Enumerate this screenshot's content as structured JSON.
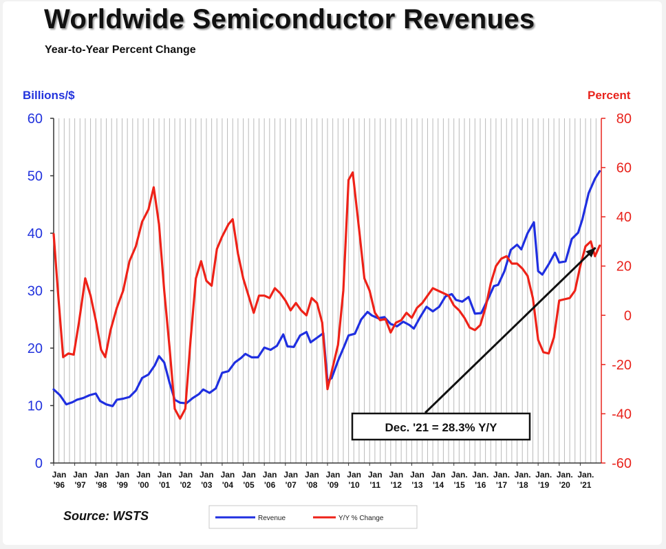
{
  "header": {
    "title": "Worldwide Semiconductor Revenues",
    "subtitle": "Year-to-Year Percent Change"
  },
  "footer": {
    "source": "Source: WSTS"
  },
  "chart_data": {
    "type": "line",
    "title": "Worldwide Semiconductor Revenues",
    "subtitle": "Year-to-Year Percent Change",
    "y_left_label": "Billions/$",
    "y_right_label": "Percent",
    "y_left_range": [
      0,
      60
    ],
    "y_left_ticks": [
      "0",
      "10",
      "20",
      "30",
      "40",
      "50",
      "60"
    ],
    "y_right_range": [
      -60,
      80
    ],
    "y_right_ticks": [
      "-60",
      "-40",
      "-20",
      "0",
      "20",
      "40",
      "60",
      "80"
    ],
    "x_range": [
      1996.0,
      2022.0
    ],
    "x_tick_labels": [
      [
        "Jan",
        "'96"
      ],
      [
        "Jan",
        "'97"
      ],
      [
        "Jan",
        "'98"
      ],
      [
        "Jan",
        "'99"
      ],
      [
        "Jan",
        "'00"
      ],
      [
        "Jan",
        "'01"
      ],
      [
        "Jan",
        "'02"
      ],
      [
        "Jan",
        "'03"
      ],
      [
        "Jan",
        "'04"
      ],
      [
        "Jan",
        "'05"
      ],
      [
        "Jan",
        "'06"
      ],
      [
        "Jan",
        "'07"
      ],
      [
        "Jan",
        "'08"
      ],
      [
        "Jan",
        "'09"
      ],
      [
        "Jan",
        "'10"
      ],
      [
        "Jan",
        "'11"
      ],
      [
        "Jan",
        "'12"
      ],
      [
        "Jan",
        "'13"
      ],
      [
        "Jan",
        "'14"
      ],
      [
        "Jan.",
        "'15"
      ],
      [
        "Jan.",
        "'16"
      ],
      [
        "Jan.",
        "'17"
      ],
      [
        "Jan.",
        "'18"
      ],
      [
        "Jan.",
        "'19"
      ],
      [
        "Jan.",
        "'20"
      ],
      [
        "Jan.",
        "'21"
      ]
    ],
    "grid": "vertical lines",
    "legend_position": "bottom-center",
    "annotation": "Dec. '21 = 28.3% Y/Y",
    "annotation_target": {
      "x": 2021.92,
      "y_percent": 28.3
    },
    "series": [
      {
        "name": "Revenue",
        "axis": "left",
        "color": "#1f2fe0",
        "points": [
          [
            1996.0,
            12.8
          ],
          [
            1996.3,
            11.8
          ],
          [
            1996.6,
            10.2
          ],
          [
            1996.9,
            10.6
          ],
          [
            1997.1,
            11.0
          ],
          [
            1997.4,
            11.3
          ],
          [
            1997.7,
            11.8
          ],
          [
            1998.0,
            12.1
          ],
          [
            1998.2,
            10.8
          ],
          [
            1998.5,
            10.2
          ],
          [
            1998.8,
            9.9
          ],
          [
            1999.0,
            11.0
          ],
          [
            1999.3,
            11.2
          ],
          [
            1999.6,
            11.5
          ],
          [
            1999.9,
            12.6
          ],
          [
            2000.2,
            14.8
          ],
          [
            2000.5,
            15.4
          ],
          [
            2000.8,
            17.0
          ],
          [
            2001.0,
            18.6
          ],
          [
            2001.25,
            17.5
          ],
          [
            2001.5,
            14.0
          ],
          [
            2001.75,
            11.0
          ],
          [
            2002.0,
            10.5
          ],
          [
            2002.3,
            10.4
          ],
          [
            2002.6,
            11.3
          ],
          [
            2002.9,
            12.0
          ],
          [
            2003.1,
            12.8
          ],
          [
            2003.4,
            12.2
          ],
          [
            2003.7,
            13.0
          ],
          [
            2004.0,
            15.7
          ],
          [
            2004.3,
            16.0
          ],
          [
            2004.6,
            17.5
          ],
          [
            2004.9,
            18.3
          ],
          [
            2005.1,
            19.0
          ],
          [
            2005.4,
            18.4
          ],
          [
            2005.7,
            18.4
          ],
          [
            2006.0,
            20.1
          ],
          [
            2006.3,
            19.7
          ],
          [
            2006.6,
            20.4
          ],
          [
            2006.9,
            22.4
          ],
          [
            2007.1,
            20.3
          ],
          [
            2007.4,
            20.2
          ],
          [
            2007.7,
            22.2
          ],
          [
            2008.0,
            22.8
          ],
          [
            2008.2,
            21.0
          ],
          [
            2008.5,
            21.8
          ],
          [
            2008.8,
            22.6
          ],
          [
            2009.0,
            14.2
          ],
          [
            2009.2,
            14.8
          ],
          [
            2009.5,
            17.8
          ],
          [
            2009.8,
            20.4
          ],
          [
            2010.0,
            22.2
          ],
          [
            2010.3,
            22.5
          ],
          [
            2010.6,
            25.0
          ],
          [
            2010.9,
            26.3
          ],
          [
            2011.1,
            25.7
          ],
          [
            2011.4,
            25.2
          ],
          [
            2011.7,
            25.4
          ],
          [
            2012.0,
            24.2
          ],
          [
            2012.3,
            23.8
          ],
          [
            2012.6,
            24.6
          ],
          [
            2012.9,
            24.0
          ],
          [
            2013.1,
            23.4
          ],
          [
            2013.4,
            25.4
          ],
          [
            2013.7,
            27.2
          ],
          [
            2014.0,
            26.4
          ],
          [
            2014.3,
            27.2
          ],
          [
            2014.6,
            29.0
          ],
          [
            2014.9,
            29.4
          ],
          [
            2015.1,
            28.4
          ],
          [
            2015.4,
            28.1
          ],
          [
            2015.7,
            28.9
          ],
          [
            2016.0,
            26.0
          ],
          [
            2016.3,
            26.1
          ],
          [
            2016.6,
            28.4
          ],
          [
            2016.9,
            30.8
          ],
          [
            2017.1,
            31.0
          ],
          [
            2017.4,
            33.4
          ],
          [
            2017.7,
            37.1
          ],
          [
            2018.0,
            38.0
          ],
          [
            2018.2,
            37.2
          ],
          [
            2018.5,
            40.0
          ],
          [
            2018.8,
            41.9
          ],
          [
            2019.0,
            33.4
          ],
          [
            2019.2,
            32.8
          ],
          [
            2019.5,
            34.6
          ],
          [
            2019.8,
            36.6
          ],
          [
            2020.0,
            34.9
          ],
          [
            2020.3,
            35.1
          ],
          [
            2020.6,
            39.0
          ],
          [
            2020.9,
            40.1
          ],
          [
            2021.1,
            42.4
          ],
          [
            2021.4,
            47.0
          ],
          [
            2021.7,
            49.5
          ],
          [
            2021.92,
            50.8
          ]
        ]
      },
      {
        "name": "Y/Y % Change",
        "axis": "right",
        "color": "#ee2218",
        "points": [
          [
            1996.0,
            33.0
          ],
          [
            1996.2,
            10.0
          ],
          [
            1996.45,
            -17.0
          ],
          [
            1996.7,
            -15.5
          ],
          [
            1996.95,
            -16.0
          ],
          [
            1997.2,
            -3.0
          ],
          [
            1997.5,
            15.0
          ],
          [
            1997.75,
            8.0
          ],
          [
            1998.0,
            -2.0
          ],
          [
            1998.25,
            -14.0
          ],
          [
            1998.45,
            -17.0
          ],
          [
            1998.7,
            -6.0
          ],
          [
            1999.0,
            3.0
          ],
          [
            1999.3,
            10.0
          ],
          [
            1999.6,
            22.0
          ],
          [
            1999.9,
            28.0
          ],
          [
            2000.2,
            38.0
          ],
          [
            2000.5,
            43.0
          ],
          [
            2000.75,
            52.0
          ],
          [
            2001.0,
            37.0
          ],
          [
            2001.25,
            10.0
          ],
          [
            2001.5,
            -13.0
          ],
          [
            2001.75,
            -38.0
          ],
          [
            2002.0,
            -42.0
          ],
          [
            2002.25,
            -38.0
          ],
          [
            2002.5,
            -10.0
          ],
          [
            2002.75,
            15.0
          ],
          [
            2003.0,
            22.0
          ],
          [
            2003.25,
            14.0
          ],
          [
            2003.5,
            12.0
          ],
          [
            2003.75,
            27.0
          ],
          [
            2004.0,
            32.0
          ],
          [
            2004.3,
            37.0
          ],
          [
            2004.5,
            39.0
          ],
          [
            2004.75,
            25.0
          ],
          [
            2005.0,
            15.0
          ],
          [
            2005.25,
            8.0
          ],
          [
            2005.5,
            1.0
          ],
          [
            2005.75,
            8.0
          ],
          [
            2006.0,
            8.0
          ],
          [
            2006.25,
            7.0
          ],
          [
            2006.5,
            11.0
          ],
          [
            2006.75,
            9.0
          ],
          [
            2007.0,
            6.0
          ],
          [
            2007.25,
            2.0
          ],
          [
            2007.5,
            5.0
          ],
          [
            2007.75,
            2.0
          ],
          [
            2008.0,
            0.0
          ],
          [
            2008.25,
            7.0
          ],
          [
            2008.5,
            5.0
          ],
          [
            2008.75,
            -3.0
          ],
          [
            2009.0,
            -30.0
          ],
          [
            2009.25,
            -21.0
          ],
          [
            2009.5,
            -12.0
          ],
          [
            2009.75,
            10.0
          ],
          [
            2010.0,
            55.0
          ],
          [
            2010.2,
            58.0
          ],
          [
            2010.5,
            35.0
          ],
          [
            2010.75,
            15.0
          ],
          [
            2011.0,
            10.0
          ],
          [
            2011.25,
            1.0
          ],
          [
            2011.5,
            -2.0
          ],
          [
            2011.75,
            -1.5
          ],
          [
            2012.0,
            -7.0
          ],
          [
            2012.25,
            -3.0
          ],
          [
            2012.5,
            -2.0
          ],
          [
            2012.75,
            1.0
          ],
          [
            2013.0,
            -1.0
          ],
          [
            2013.25,
            3.0
          ],
          [
            2013.5,
            5.0
          ],
          [
            2013.75,
            8.0
          ],
          [
            2014.0,
            11.0
          ],
          [
            2014.25,
            10.0
          ],
          [
            2014.5,
            9.0
          ],
          [
            2014.75,
            8.0
          ],
          [
            2015.0,
            4.0
          ],
          [
            2015.25,
            2.0
          ],
          [
            2015.5,
            -1.0
          ],
          [
            2015.75,
            -5.0
          ],
          [
            2016.0,
            -6.0
          ],
          [
            2016.25,
            -4.0
          ],
          [
            2016.5,
            3.0
          ],
          [
            2016.75,
            13.0
          ],
          [
            2017.0,
            20.0
          ],
          [
            2017.25,
            23.0
          ],
          [
            2017.5,
            24.0
          ],
          [
            2017.75,
            21.0
          ],
          [
            2018.0,
            21.0
          ],
          [
            2018.25,
            19.0
          ],
          [
            2018.5,
            16.0
          ],
          [
            2018.75,
            7.0
          ],
          [
            2019.0,
            -10.0
          ],
          [
            2019.25,
            -15.0
          ],
          [
            2019.5,
            -15.5
          ],
          [
            2019.75,
            -9.0
          ],
          [
            2020.0,
            6.0
          ],
          [
            2020.25,
            6.5
          ],
          [
            2020.5,
            7.0
          ],
          [
            2020.75,
            10.0
          ],
          [
            2021.0,
            20.0
          ],
          [
            2021.25,
            28.0
          ],
          [
            2021.5,
            30.0
          ],
          [
            2021.7,
            24.0
          ],
          [
            2021.92,
            28.3
          ]
        ]
      }
    ]
  }
}
